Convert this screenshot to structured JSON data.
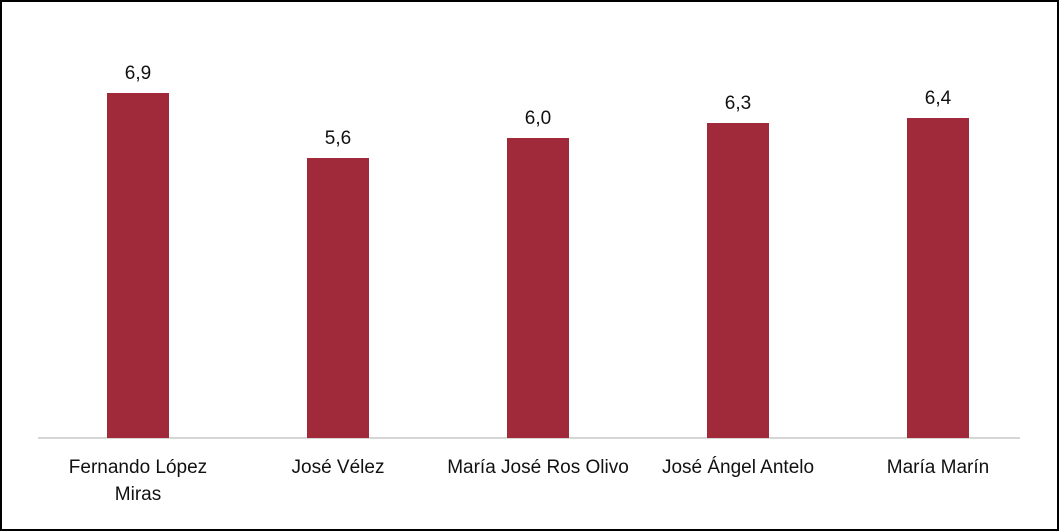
{
  "chart_data": {
    "type": "bar",
    "categories": [
      "Fernando López Miras",
      "José Vélez",
      "María José Ros Olivo",
      "José Ángel Antelo",
      "María Marín"
    ],
    "values": [
      6.9,
      5.6,
      6.0,
      6.3,
      6.4
    ],
    "value_labels": [
      "6,9",
      "5,6",
      "6,0",
      "6,3",
      "6,4"
    ],
    "color": "#a0293a"
  }
}
